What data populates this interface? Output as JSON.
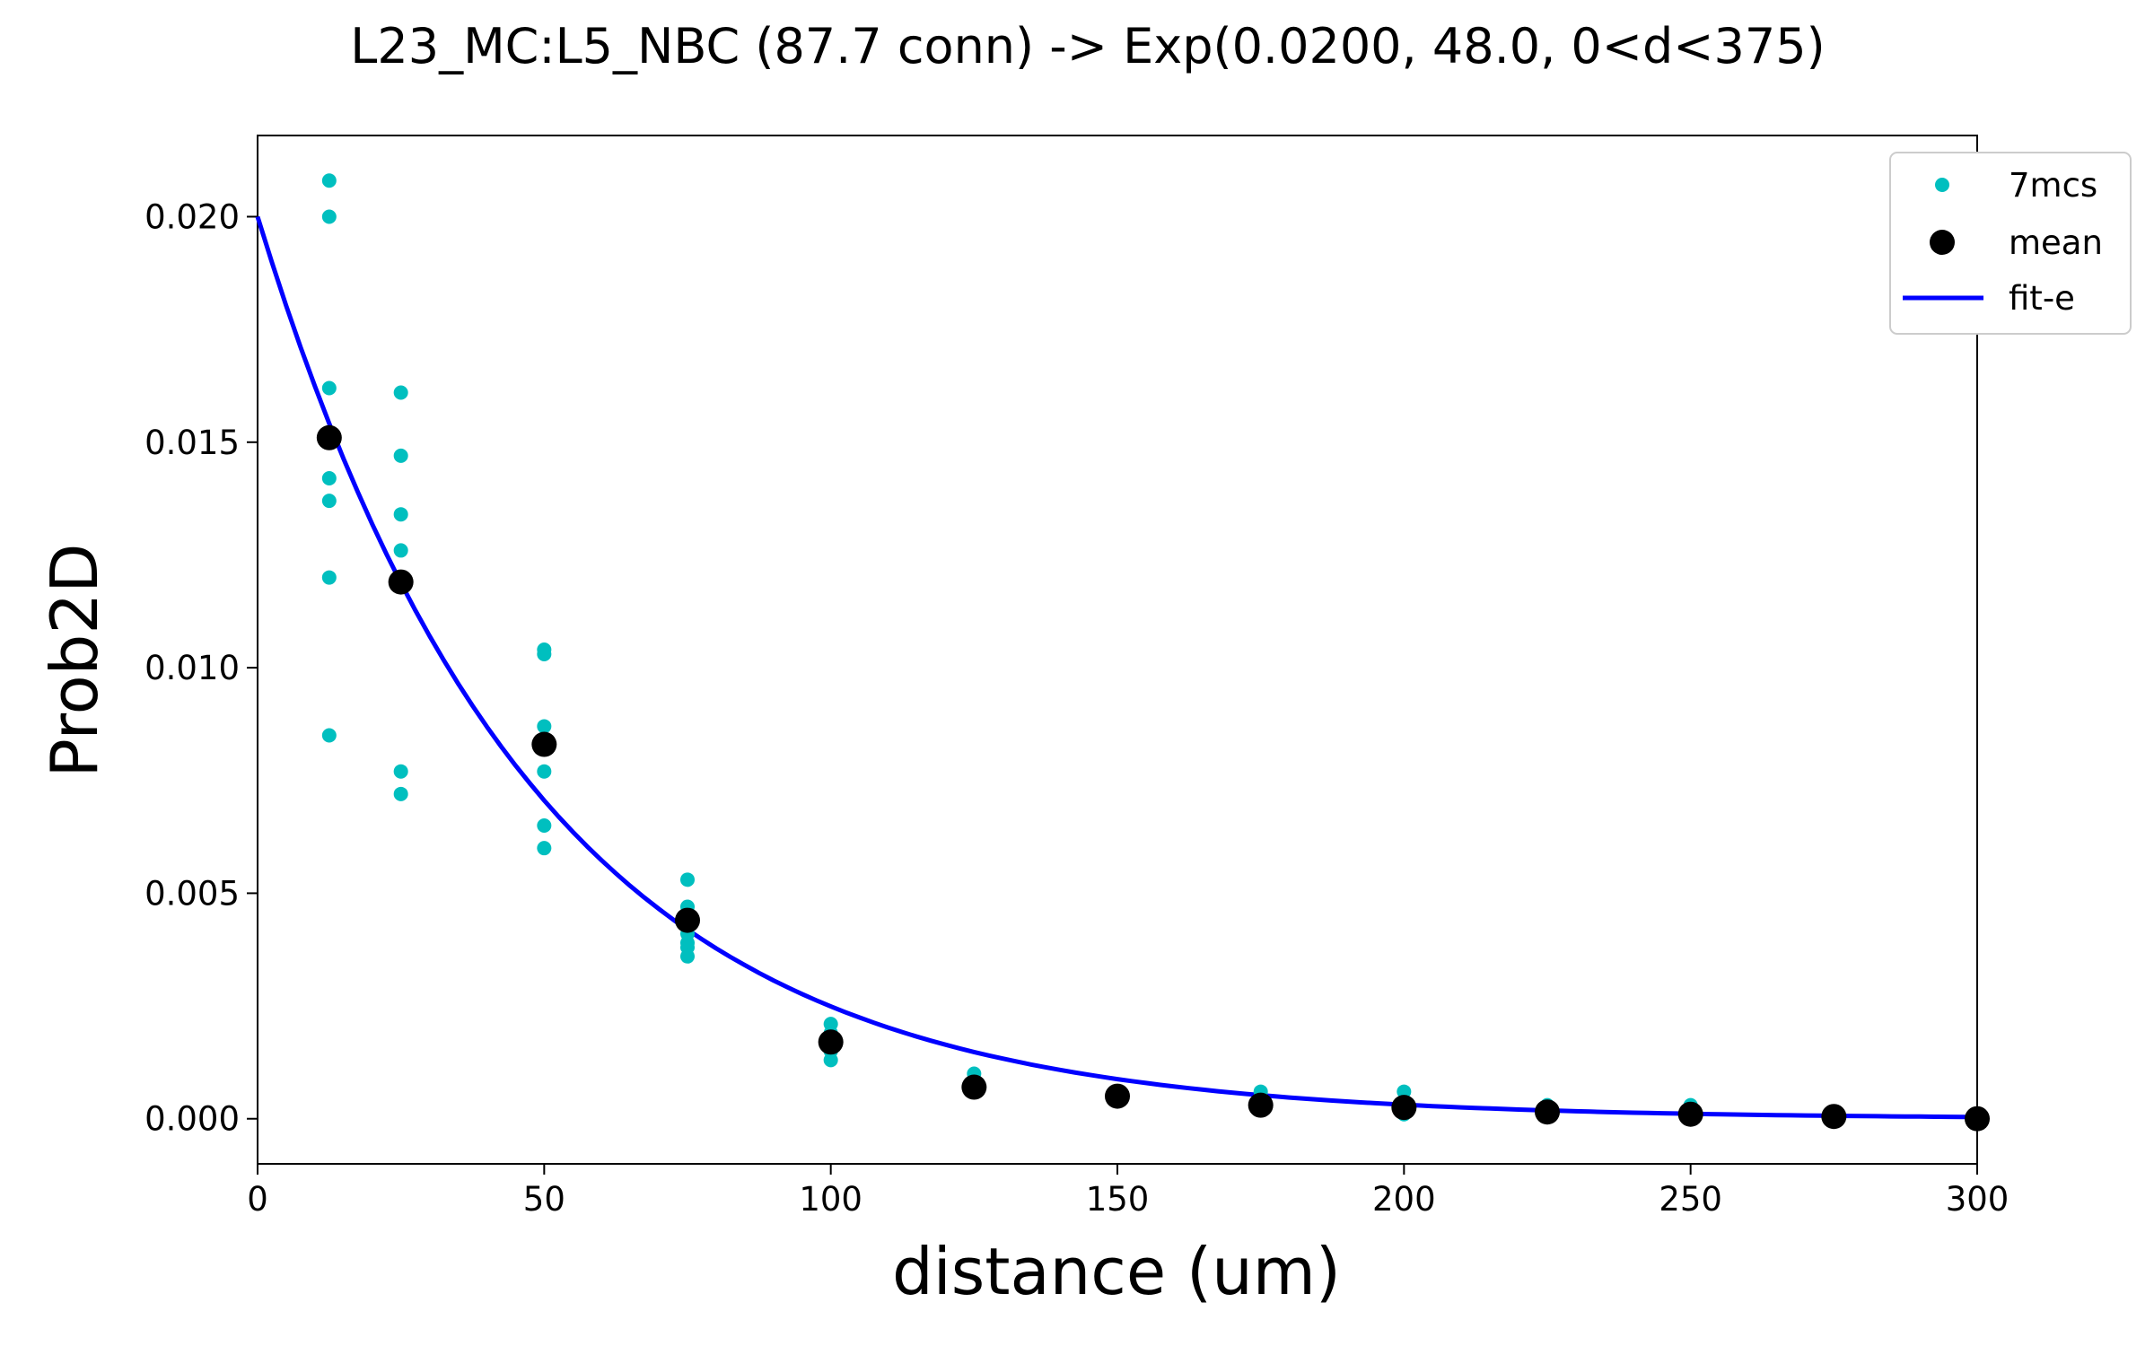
{
  "chart_data": {
    "type": "scatter",
    "title": "L23_MC:L5_NBC (87.7 conn) -> Exp(0.0200, 48.0, 0<d<375)",
    "xlabel": "distance (um)",
    "ylabel": "Prob2D",
    "xlim": [
      0,
      300
    ],
    "ylim": [
      -0.001,
      0.0218
    ],
    "x_ticks": [
      0,
      50,
      100,
      150,
      200,
      250,
      300
    ],
    "x_tick_labels": [
      "0",
      "50",
      "100",
      "150",
      "200",
      "250",
      "300"
    ],
    "y_ticks": [
      0.0,
      0.005,
      0.01,
      0.015,
      0.02
    ],
    "y_tick_labels": [
      "0.000",
      "0.005",
      "0.010",
      "0.015",
      "0.020"
    ],
    "grid": false,
    "legend_position": "top-right",
    "legend": [
      {
        "label": "7mcs",
        "color": "#00bfbf",
        "marker": "small-dot"
      },
      {
        "label": "mean",
        "color": "#000000",
        "marker": "large-dot"
      },
      {
        "label": "fit-e",
        "color": "#0000ff",
        "marker": "line"
      }
    ],
    "series": [
      {
        "name": "7mcs",
        "type": "scatter",
        "color": "#00bfbf",
        "points": [
          [
            12.5,
            0.0208
          ],
          [
            12.5,
            0.02
          ],
          [
            12.5,
            0.0162
          ],
          [
            12.5,
            0.0142
          ],
          [
            12.5,
            0.0137
          ],
          [
            12.5,
            0.012
          ],
          [
            12.5,
            0.0085
          ],
          [
            25,
            0.0161
          ],
          [
            25,
            0.0147
          ],
          [
            25,
            0.0134
          ],
          [
            25,
            0.0126
          ],
          [
            25,
            0.012
          ],
          [
            25,
            0.0077
          ],
          [
            25,
            0.0072
          ],
          [
            50,
            0.0104
          ],
          [
            50,
            0.0103
          ],
          [
            50,
            0.0087
          ],
          [
            50,
            0.0077
          ],
          [
            50,
            0.0065
          ],
          [
            50,
            0.006
          ],
          [
            75,
            0.0053
          ],
          [
            75,
            0.0047
          ],
          [
            75,
            0.0043
          ],
          [
            75,
            0.0041
          ],
          [
            75,
            0.0039
          ],
          [
            75,
            0.0038
          ],
          [
            75,
            0.0036
          ],
          [
            100,
            0.0021
          ],
          [
            100,
            0.0019
          ],
          [
            100,
            0.0017
          ],
          [
            100,
            0.0015
          ],
          [
            100,
            0.0013
          ],
          [
            125,
            0.001
          ],
          [
            125,
            0.0008
          ],
          [
            125,
            0.0007
          ],
          [
            125,
            0.0006
          ],
          [
            150,
            0.0005
          ],
          [
            150,
            0.0004
          ],
          [
            175,
            0.0006
          ],
          [
            175,
            0.0004
          ],
          [
            175,
            0.0002
          ],
          [
            200,
            0.0006
          ],
          [
            200,
            0.0003
          ],
          [
            200,
            0.0001
          ],
          [
            225,
            0.0003
          ],
          [
            225,
            0.0002
          ],
          [
            225,
            0.0001
          ],
          [
            250,
            0.0003
          ],
          [
            250,
            0.0001
          ],
          [
            275,
            0.0001
          ],
          [
            300,
            0.0
          ]
        ]
      },
      {
        "name": "mean",
        "type": "scatter",
        "color": "#000000",
        "points": [
          [
            12.5,
            0.0151
          ],
          [
            25,
            0.0119
          ],
          [
            50,
            0.0083
          ],
          [
            75,
            0.0044
          ],
          [
            100,
            0.0017
          ],
          [
            125,
            0.0007
          ],
          [
            150,
            0.0005
          ],
          [
            175,
            0.0003
          ],
          [
            200,
            0.00025
          ],
          [
            225,
            0.00015
          ],
          [
            250,
            0.0001
          ],
          [
            275,
            5e-05
          ],
          [
            300,
            0.0
          ]
        ]
      },
      {
        "name": "fit-e",
        "type": "line",
        "color": "#0000ff",
        "function": "exp",
        "amplitude": 0.02,
        "scale": 48.0,
        "x_range": [
          0,
          300
        ]
      }
    ]
  }
}
